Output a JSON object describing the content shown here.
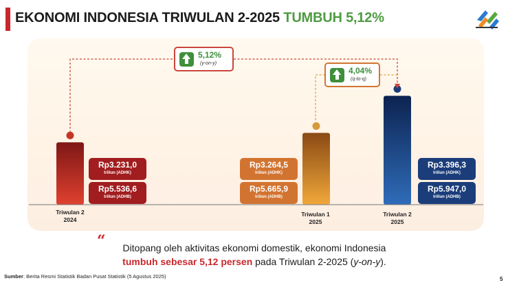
{
  "header": {
    "title_main": "EKONOMI INDONESIA TRIWULAN 2-2025",
    "title_highlight": "TUMBUH 5,12%",
    "logo_icon": "bps-logo-icon"
  },
  "colors": {
    "title_accent": "#c8282d",
    "highlight_green": "#4f9b43",
    "q2_2024_red": "#a11d1f",
    "q1_2025_orange": "#d27431",
    "q2_2025_blue": "#1b3d7a"
  },
  "chart_data": {
    "type": "bar",
    "categories": [
      "Triwulan 2 2024",
      "Triwulan 1 2025",
      "Triwulan 2 2025"
    ],
    "series": [
      {
        "name": "",
        "values": [
          3231.0,
          3264.5,
          3396.3
        ]
      }
    ],
    "bars": [
      {
        "label_line1": "Triwulan 2",
        "label_line2": "2024",
        "adhk": "Rp3.231,0",
        "adhb": "Rp5.536,6",
        "adhk_unit": "triliun (ADHK)",
        "adhb_unit": "triliun (ADHB)",
        "adhk_value": 3231.0,
        "adhb_value": 5536.6
      },
      {
        "label_line1": "Triwulan 1",
        "label_line2": "2025",
        "adhk": "Rp3.264,5",
        "adhb": "Rp5.665,9",
        "adhk_unit": "triliun (ADHK)",
        "adhb_unit": "triliun (ADHB)",
        "adhk_value": 3264.5,
        "adhb_value": 5665.9
      },
      {
        "label_line1": "Triwulan 2",
        "label_line2": "2025",
        "adhk": "Rp3.396,3",
        "adhb": "Rp5.947,0",
        "adhk_unit": "triliun (ADHK)",
        "adhb_unit": "triliun (ADHB)",
        "adhk_value": 3396.3,
        "adhb_value": 5947.0
      }
    ],
    "annotations": [
      {
        "value": "5,12%",
        "label": "(y-on-y)",
        "from": "Triwulan 2 2024",
        "to": "Triwulan 2 2025"
      },
      {
        "value": "4,04%",
        "label": "(q-to-q)",
        "from": "Triwulan 1 2025",
        "to": "Triwulan 2 2025"
      }
    ]
  },
  "caption": {
    "line1": "Ditopang oleh aktivitas ekonomi domestik, ekonomi Indonesia",
    "line2_emphasis": "tumbuh sebesar 5,12 persen",
    "line2_rest": " pada Triwulan 2-2025 (",
    "line2_italic": "y-on-y",
    "line2_end": ")."
  },
  "footer": {
    "source_label": "Sumber",
    "source_text": ": Berita Resmi Statistik Badan Pusat Statistik (5 Agustus 2025)",
    "page_number": "5"
  }
}
